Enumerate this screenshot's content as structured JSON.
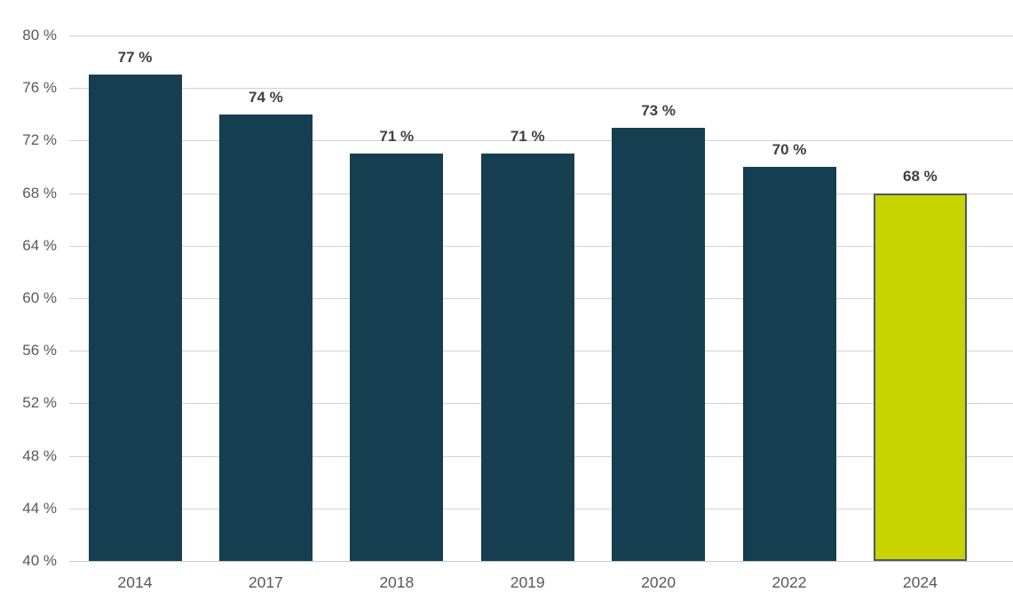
{
  "chart_data": {
    "type": "bar",
    "categories": [
      "2014",
      "2017",
      "2018",
      "2019",
      "2020",
      "2022",
      "2024"
    ],
    "values": [
      77,
      74,
      71,
      71,
      73,
      70,
      68
    ],
    "data_labels": [
      "77 %",
      "74 %",
      "71 %",
      "71 %",
      "73 %",
      "70 %",
      "68 %"
    ],
    "ytick_values": [
      40,
      44,
      48,
      52,
      56,
      60,
      64,
      68,
      72,
      76,
      80
    ],
    "ytick_labels": [
      "40 %",
      "44 %",
      "48 %",
      "52 %",
      "56 %",
      "60 %",
      "64 %",
      "68 %",
      "72 %",
      "76 %",
      "80 %"
    ],
    "ylim": [
      40,
      80
    ],
    "ytick_step": 4,
    "title": "",
    "xlabel": "",
    "ylabel": "",
    "grid": "horizontal",
    "legend": "none",
    "highlight_index": 6,
    "colors": {
      "bar": "#153f50",
      "highlight_bar": "#c8d400",
      "highlight_border": "#4a5a62",
      "gridline": "#d2d2d2",
      "baseline": "#c8c8c8",
      "tick_label": "#595959",
      "data_label": "#3f3f3f",
      "background": "#ffffff"
    }
  }
}
